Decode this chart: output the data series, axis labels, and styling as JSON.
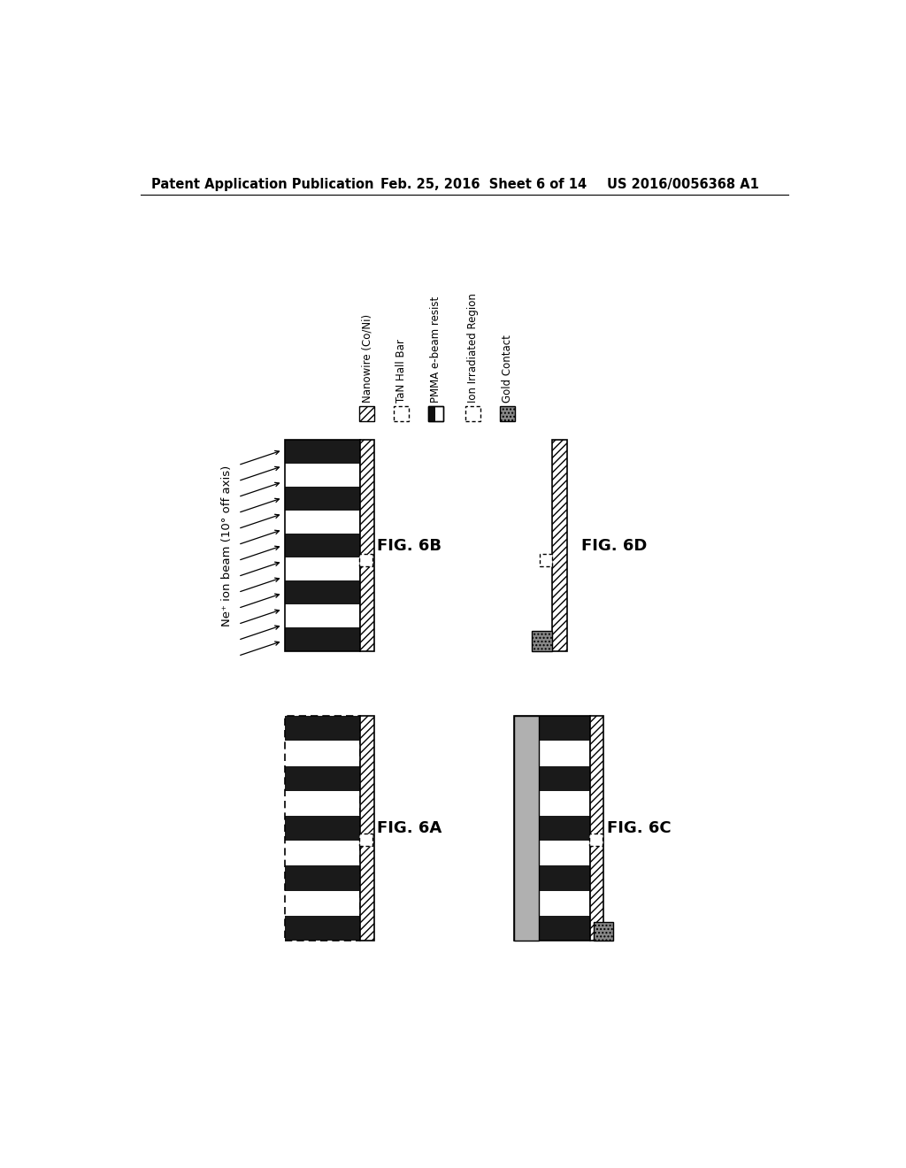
{
  "header_left": "Patent Application Publication",
  "header_mid": "Feb. 25, 2016  Sheet 6 of 14",
  "header_right": "US 2016/0056368 A1",
  "legend_items": [
    {
      "label": "Nanowire (Co/Ni)",
      "style": "hatch_diag"
    },
    {
      "label": "TaN Hall Bar",
      "style": "empty_dotted"
    },
    {
      "label": "PMMA e-beam resist",
      "style": "black_half"
    },
    {
      "label": "Ion Irradiated Region",
      "style": "empty_dotted"
    },
    {
      "label": "Gold Contact",
      "style": "gray_hatch"
    }
  ],
  "ion_beam_label": "Ne⁺ ion beam (10° off axis)",
  "bg_color": "#ffffff"
}
